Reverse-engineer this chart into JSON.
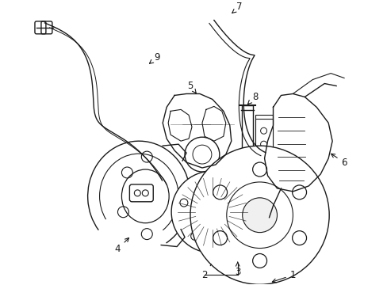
{
  "background_color": "#ffffff",
  "line_color": "#1a1a1a",
  "line_width": 1.0,
  "label_fontsize": 8.5,
  "fig_width": 4.89,
  "fig_height": 3.6,
  "dpi": 100
}
